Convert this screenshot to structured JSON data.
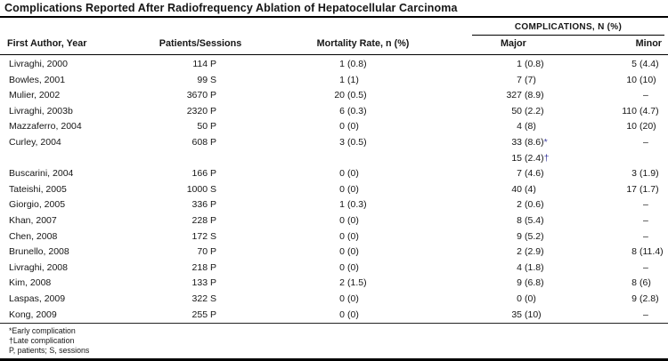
{
  "table": {
    "title": "Complications Reported After Radiofrequency Ablation of Hepatocellular Carcinoma",
    "columns": {
      "author": "First Author, Year",
      "patients": "Patients/Sessions",
      "mortality": "Mortality Rate, n (%)",
      "complications_group": "COMPLICATIONS, N (%)",
      "major": "Major",
      "minor": "Minor"
    },
    "dash": "–",
    "rows": [
      {
        "author": "Livraghi, 2000",
        "patients": "114 P",
        "mortality": [
          {
            "n": "1",
            "p": "(0.8)"
          }
        ],
        "major": [
          {
            "n": "1",
            "p": "(0.8)"
          }
        ],
        "minor": [
          {
            "n": "5",
            "p": "(4.4)"
          }
        ]
      },
      {
        "author": "Bowles, 2001",
        "patients": "99 S",
        "mortality": [
          {
            "n": "1",
            "p": "(1)"
          }
        ],
        "major": [
          {
            "n": "7",
            "p": "(7)"
          }
        ],
        "minor": [
          {
            "n": "10",
            "p": "(10)"
          }
        ]
      },
      {
        "author": "Mulier, 2002",
        "patients": "3670 P",
        "mortality": [
          {
            "n": "20",
            "p": "(0.5)"
          }
        ],
        "major": [
          {
            "n": "327",
            "p": "(8.9)"
          }
        ],
        "minor": [
          {
            "dash": true
          }
        ]
      },
      {
        "author": "Livraghi, 2003b",
        "patients": "2320 P",
        "mortality": [
          {
            "n": "6",
            "p": "(0.3)"
          }
        ],
        "major": [
          {
            "n": "50",
            "p": "(2.2)"
          }
        ],
        "minor": [
          {
            "n": "110",
            "p": "(4.7)"
          }
        ]
      },
      {
        "author": "Mazzaferro, 2004",
        "patients": "50 P",
        "mortality": [
          {
            "n": "0",
            "p": "(0)"
          }
        ],
        "major": [
          {
            "n": "4",
            "p": "(8)"
          }
        ],
        "minor": [
          {
            "n": "10",
            "p": "(20)"
          }
        ]
      },
      {
        "author": "Curley, 2004",
        "patients": "608 P",
        "mortality": [
          {
            "n": "3",
            "p": "(0.5)"
          }
        ],
        "major": [
          {
            "n": "33",
            "p": "(8.6)",
            "sup": "*"
          },
          {
            "n": "15",
            "p": "(2.4)",
            "sup": "†"
          }
        ],
        "minor": [
          {
            "dash": true
          }
        ]
      },
      {
        "author": "Buscarini, 2004",
        "patients": "166 P",
        "mortality": [
          {
            "n": "0",
            "p": "(0)"
          }
        ],
        "major": [
          {
            "n": "7",
            "p": "(4.6)"
          }
        ],
        "minor": [
          {
            "n": "3",
            "p": "(1.9)"
          }
        ]
      },
      {
        "author": "Tateishi, 2005",
        "patients": "1000 S",
        "mortality": [
          {
            "n": "0",
            "p": "(0)"
          }
        ],
        "major": [
          {
            "n": "40",
            "p": "(4)"
          }
        ],
        "minor": [
          {
            "n": "17",
            "p": "(1.7)"
          }
        ]
      },
      {
        "author": "Giorgio, 2005",
        "patients": "336 P",
        "mortality": [
          {
            "n": "1",
            "p": "(0.3)"
          }
        ],
        "major": [
          {
            "n": "2",
            "p": "(0.6)"
          }
        ],
        "minor": [
          {
            "dash": true
          }
        ]
      },
      {
        "author": "Khan, 2007",
        "patients": "228 P",
        "mortality": [
          {
            "n": "0",
            "p": "(0)"
          }
        ],
        "major": [
          {
            "n": "8",
            "p": "(5.4)"
          }
        ],
        "minor": [
          {
            "dash": true
          }
        ]
      },
      {
        "author": "Chen, 2008",
        "patients": "172 S",
        "mortality": [
          {
            "n": "0",
            "p": "(0)"
          }
        ],
        "major": [
          {
            "n": "9",
            "p": "(5.2)"
          }
        ],
        "minor": [
          {
            "dash": true
          }
        ]
      },
      {
        "author": "Brunello, 2008",
        "patients": "70 P",
        "mortality": [
          {
            "n": "0",
            "p": "(0)"
          }
        ],
        "major": [
          {
            "n": "2",
            "p": "(2.9)"
          }
        ],
        "minor": [
          {
            "n": "8",
            "p": "(11.4)"
          }
        ]
      },
      {
        "author": "Livraghi, 2008",
        "patients": "218 P",
        "mortality": [
          {
            "n": "0",
            "p": "(0)"
          }
        ],
        "major": [
          {
            "n": "4",
            "p": "(1.8)"
          }
        ],
        "minor": [
          {
            "dash": true
          }
        ]
      },
      {
        "author": "Kim, 2008",
        "patients": "133 P",
        "mortality": [
          {
            "n": "2",
            "p": "(1.5)"
          }
        ],
        "major": [
          {
            "n": "9",
            "p": "(6.8)"
          }
        ],
        "minor": [
          {
            "n": "8",
            "p": "(6)"
          }
        ]
      },
      {
        "author": "Laspas, 2009",
        "patients": "322 S",
        "mortality": [
          {
            "n": "0",
            "p": "(0)"
          }
        ],
        "major": [
          {
            "n": "0",
            "p": "(0)"
          }
        ],
        "minor": [
          {
            "n": "9",
            "p": "(2.8)"
          }
        ]
      },
      {
        "author": "Kong, 2009",
        "patients": "255 P",
        "mortality": [
          {
            "n": "0",
            "p": "(0)"
          }
        ],
        "major": [
          {
            "n": "35",
            "p": "(10)"
          }
        ],
        "minor": [
          {
            "dash": true
          }
        ]
      }
    ],
    "footnotes": [
      "*Early complication",
      "†Late complication",
      "P, patients; S, sessions"
    ],
    "colors": {
      "footnote_marker": "#3f3f9f",
      "text": "#161616",
      "rule": "#000000"
    }
  }
}
